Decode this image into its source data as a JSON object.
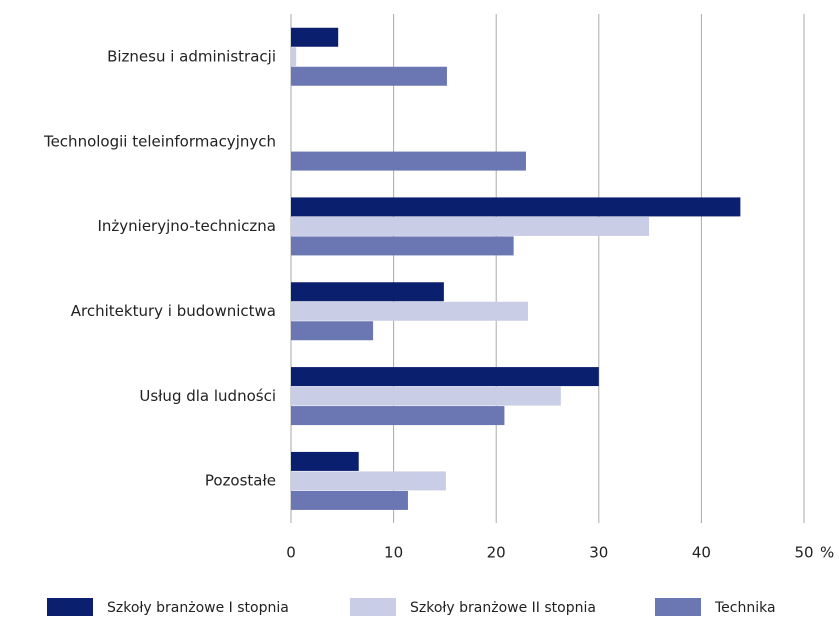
{
  "chart_data": {
    "type": "hbar",
    "categories": [
      "Biznesu i administracji",
      "Technologii teleinformacyjnych",
      "Inżynieryjno-techniczna",
      "Architektury i budownictwa",
      "Usług dla ludności",
      "Pozostałe"
    ],
    "series": [
      {
        "name": "Szkoły branżowe I stopnia",
        "color": "#0b1f6f",
        "values": [
          4.6,
          0,
          43.8,
          14.9,
          30.0,
          6.6
        ]
      },
      {
        "name": "Szkoły branżowe II stopnia",
        "color": "#c9cee6",
        "values": [
          0.5,
          0,
          34.9,
          23.1,
          26.3,
          15.1
        ]
      },
      {
        "name": "Technika",
        "color": "#6b77b3",
        "values": [
          15.2,
          22.9,
          21.7,
          8.0,
          20.8,
          11.4
        ]
      }
    ],
    "xlim": [
      0,
      50
    ],
    "xticks": [
      0,
      10,
      20,
      30,
      40,
      50
    ],
    "x_unit": "%",
    "grid": true,
    "legend": "bottom"
  }
}
